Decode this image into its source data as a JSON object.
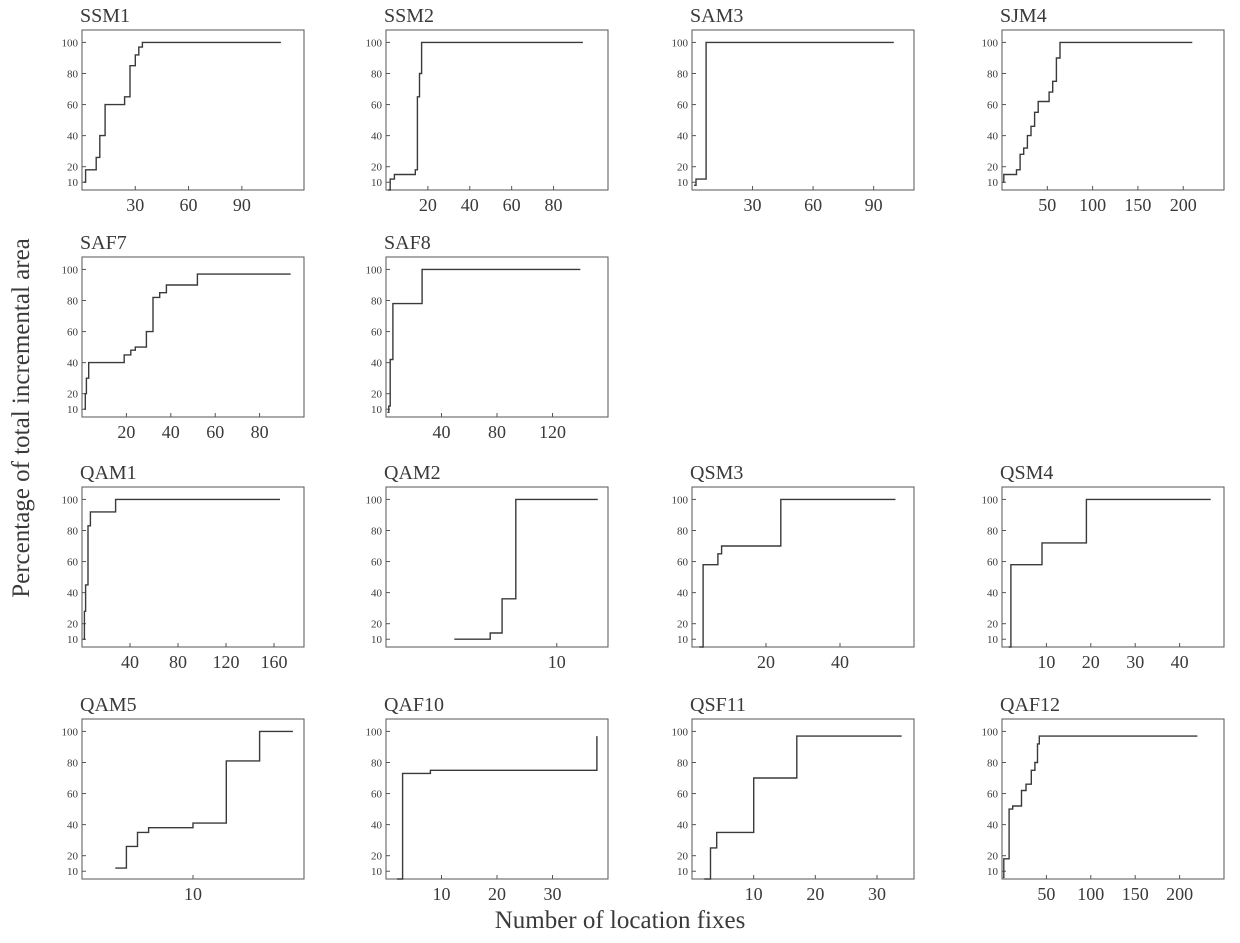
{
  "figure": {
    "ylabel": "Percentage of total incremental area",
    "xlabel": "Number of location fixes"
  },
  "style": {
    "line_color": "#3a3a3a",
    "axis_color": "#555555"
  },
  "chart_data": [
    {
      "type": "line",
      "step": true,
      "title": "SSM1",
      "xlim": [
        0,
        125
      ],
      "ylim": [
        5,
        108
      ],
      "xticks": [
        30,
        60,
        90
      ],
      "yticks": [
        10,
        20,
        40,
        60,
        80,
        100
      ],
      "x": [
        1,
        2,
        3,
        8,
        10,
        13,
        18,
        24,
        27,
        29,
        30,
        32,
        34,
        112
      ],
      "y": [
        10,
        18,
        18,
        26,
        40,
        60,
        60,
        65,
        85,
        85,
        92,
        97,
        100,
        100
      ]
    },
    {
      "type": "line",
      "step": true,
      "title": "SSM2",
      "xlim": [
        0,
        106
      ],
      "ylim": [
        5,
        108
      ],
      "xticks": [
        20,
        40,
        60,
        80
      ],
      "yticks": [
        10,
        20,
        40,
        60,
        80,
        100
      ],
      "x": [
        1,
        2,
        4,
        13,
        14,
        15,
        16,
        17,
        94
      ],
      "y": [
        5,
        12,
        15,
        15,
        18,
        65,
        80,
        100,
        100
      ]
    },
    {
      "type": "line",
      "step": true,
      "title": "SAM3",
      "xlim": [
        0,
        110
      ],
      "ylim": [
        5,
        108
      ],
      "xticks": [
        30,
        60,
        90
      ],
      "yticks": [
        10,
        20,
        40,
        60,
        80,
        100
      ],
      "x": [
        1,
        2,
        6,
        7,
        100
      ],
      "y": [
        8,
        12,
        12,
        100,
        100
      ]
    },
    {
      "type": "line",
      "step": true,
      "title": "SJM4",
      "xlim": [
        0,
        245
      ],
      "ylim": [
        5,
        108
      ],
      "xticks": [
        50,
        100,
        150,
        200
      ],
      "yticks": [
        10,
        20,
        40,
        60,
        80,
        100
      ],
      "x": [
        1,
        2,
        13,
        16,
        20,
        24,
        28,
        32,
        36,
        40,
        48,
        52,
        56,
        60,
        64,
        210
      ],
      "y": [
        10,
        15,
        15,
        18,
        28,
        32,
        40,
        46,
        55,
        62,
        62,
        68,
        75,
        90,
        100,
        100
      ]
    },
    {
      "type": "line",
      "step": true,
      "title": "SAF7",
      "xlim": [
        0,
        100
      ],
      "ylim": [
        5,
        108
      ],
      "xticks": [
        20,
        40,
        60,
        80
      ],
      "yticks": [
        10,
        20,
        40,
        60,
        80,
        100
      ],
      "x": [
        1,
        1.5,
        2,
        3,
        19,
        22,
        24,
        29,
        32,
        35,
        38,
        52,
        94
      ],
      "y": [
        10,
        20,
        30,
        40,
        45,
        48,
        50,
        60,
        82,
        85,
        90,
        97,
        97
      ]
    },
    {
      "type": "line",
      "step": true,
      "title": "SAF8",
      "xlim": [
        0,
        160
      ],
      "ylim": [
        5,
        108
      ],
      "xticks": [
        40,
        80,
        120
      ],
      "yticks": [
        10,
        20,
        40,
        60,
        80,
        100
      ],
      "x": [
        1,
        2,
        3,
        5,
        26,
        140
      ],
      "y": [
        8,
        12,
        42,
        78,
        100,
        100
      ]
    },
    {
      "type": "line",
      "step": true,
      "title": "QAM1",
      "xlim": [
        0,
        185
      ],
      "ylim": [
        5,
        108
      ],
      "xticks": [
        40,
        80,
        120,
        160
      ],
      "yticks": [
        10,
        20,
        40,
        60,
        80,
        100
      ],
      "x": [
        1,
        2,
        3,
        5,
        7,
        28,
        165
      ],
      "y": [
        10,
        28,
        45,
        83,
        92,
        100,
        100
      ]
    },
    {
      "type": "line",
      "step": true,
      "title": "QAM2",
      "xlim": [
        0,
        13
      ],
      "ylim": [
        5,
        108
      ],
      "xticks": [
        10
      ],
      "yticks": [
        10,
        20,
        40,
        60,
        80,
        100
      ],
      "x": [
        4,
        6.1,
        6.5,
        6.8,
        7.6,
        12.4
      ],
      "y": [
        10,
        14,
        14,
        36,
        100,
        100
      ]
    },
    {
      "type": "line",
      "step": true,
      "title": "QSM3",
      "xlim": [
        0,
        60
      ],
      "ylim": [
        5,
        108
      ],
      "xticks": [
        20,
        40
      ],
      "yticks": [
        10,
        20,
        40,
        60,
        80,
        100
      ],
      "x": [
        2,
        3,
        7,
        8,
        24,
        55
      ],
      "y": [
        5,
        58,
        65,
        70,
        100,
        100
      ]
    },
    {
      "type": "line",
      "step": true,
      "title": "QSM4",
      "xlim": [
        0,
        50
      ],
      "ylim": [
        5,
        108
      ],
      "xticks": [
        10,
        20,
        30,
        40
      ],
      "yticks": [
        10,
        20,
        40,
        60,
        80,
        100
      ],
      "x": [
        1.5,
        2,
        9,
        19,
        47
      ],
      "y": [
        5,
        58,
        72,
        100,
        100
      ]
    },
    {
      "type": "line",
      "step": true,
      "title": "QAM5",
      "xlim": [
        0,
        20
      ],
      "ylim": [
        5,
        108
      ],
      "xticks": [
        10
      ],
      "yticks": [
        10,
        20,
        40,
        60,
        80,
        100
      ],
      "x": [
        3,
        4,
        5,
        6,
        9,
        10,
        13,
        16,
        19
      ],
      "y": [
        12,
        26,
        35,
        38,
        38,
        41,
        81,
        100,
        100
      ]
    },
    {
      "type": "line",
      "step": true,
      "title": "QAF10",
      "xlim": [
        0,
        40
      ],
      "ylim": [
        5,
        108
      ],
      "xticks": [
        10,
        20,
        30
      ],
      "yticks": [
        10,
        20,
        40,
        60,
        80,
        100
      ],
      "x": [
        2,
        3,
        8,
        23,
        38
      ],
      "y": [
        5,
        73,
        75,
        75,
        97
      ]
    },
    {
      "type": "line",
      "step": true,
      "title": "QSF11",
      "xlim": [
        0,
        36
      ],
      "ylim": [
        5,
        108
      ],
      "xticks": [
        10,
        20,
        30
      ],
      "yticks": [
        10,
        20,
        40,
        60,
        80,
        100
      ],
      "x": [
        2,
        3,
        4,
        10,
        17,
        34
      ],
      "y": [
        5,
        25,
        35,
        70,
        97,
        97
      ]
    },
    {
      "type": "line",
      "step": true,
      "title": "QAF12",
      "xlim": [
        0,
        250
      ],
      "ylim": [
        5,
        108
      ],
      "xticks": [
        50,
        100,
        150,
        200
      ],
      "yticks": [
        10,
        20,
        40,
        60,
        80,
        100
      ],
      "x": [
        1,
        2,
        8,
        12,
        22,
        27,
        33,
        37,
        40,
        42,
        220
      ],
      "y": [
        6,
        18,
        50,
        52,
        62,
        66,
        75,
        80,
        92,
        97,
        97
      ]
    }
  ]
}
